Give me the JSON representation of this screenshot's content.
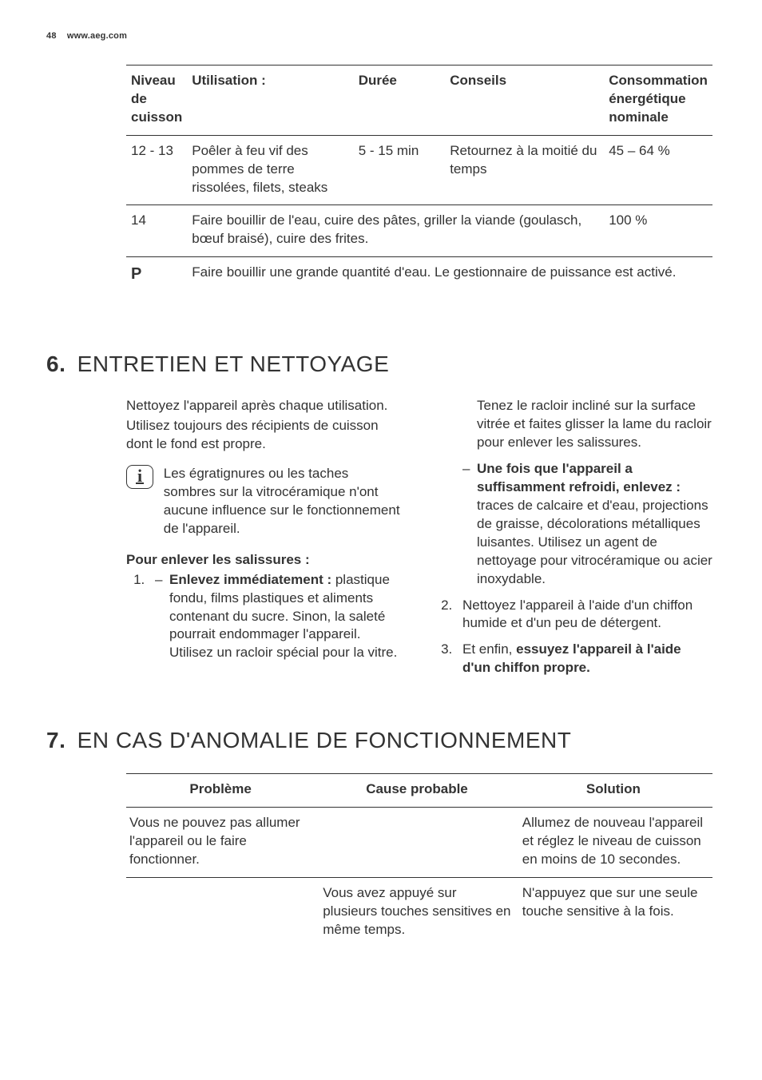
{
  "header": {
    "page_num": "48",
    "url": "www.aeg.com"
  },
  "table1": {
    "columns": [
      "Niveau de cuisson",
      "Utilisation :",
      "Durée",
      "Conseils",
      "Consommation énergétique nominale"
    ],
    "rows": [
      {
        "level": "12 - 13",
        "usage": "Poêler à feu vif des pommes de terre rissolées, filets, steaks",
        "duree": "5 - 15 min",
        "conseils": "Retournez à la moitié du temps",
        "consom": "45 – 64 %"
      },
      {
        "level": "14",
        "usage_span": "Faire bouillir de l'eau, cuire des pâtes, griller la viande (goulasch, bœuf braisé), cuire des frites.",
        "consom": "100 %"
      },
      {
        "level": "P",
        "usage_full": "Faire bouillir une grande quantité d'eau. Le gestionnaire de puissance est activé."
      }
    ]
  },
  "section6": {
    "num": "6.",
    "title": "ENTRETIEN ET NETTOYAGE",
    "intro1": "Nettoyez l'appareil après chaque utilisation.",
    "intro2": "Utilisez toujours des récipients de cuisson dont le fond est propre.",
    "info": "Les égratignures ou les taches sombres sur la vitrocéramique n'ont aucune influence sur le fonctionnement de l'appareil.",
    "sub": "Pour enlever les salissures :",
    "step1_b1": "Enlevez immédiatement :",
    "step1_t1": " plastique fondu, films plastiques et aliments contenant du sucre. Sinon, la saleté pourrait endommager l'appareil. Utilisez un racloir spécial pour la vitre. Tenez le racloir incliné sur la surface vitrée et faites glisser la lame du racloir pour enlever les salissures.",
    "step1_b2": "Une fois que l'appareil a suffisamment refroidi, enlevez :",
    "step1_t2": " traces de calcaire et d'eau, projections de graisse, décolorations métalliques luisantes. Utilisez un agent de nettoyage pour vitrocéramique ou acier inoxydable.",
    "step2": "Nettoyez l'appareil à l'aide d'un chiffon humide et d'un peu de détergent.",
    "step3_a": "Et enfin, ",
    "step3_b": "essuyez l'appareil à l'aide d'un chiffon propre."
  },
  "section7": {
    "num": "7.",
    "title": "EN CAS D'ANOMALIE DE FONCTIONNEMENT",
    "columns": [
      "Problème",
      "Cause probable",
      "Solution"
    ],
    "rows": [
      {
        "prob": "Vous ne pouvez pas allumer l'appareil ou le faire fonctionner.",
        "cause": "",
        "sol": "Allumez de nouveau l'appareil et réglez le niveau de cuisson en moins de 10 secondes."
      },
      {
        "prob": "",
        "cause": "Vous avez appuyé sur plusieurs touches sensitives en même temps.",
        "sol": "N'appuyez que sur une seule touche sensitive à la fois."
      }
    ]
  }
}
